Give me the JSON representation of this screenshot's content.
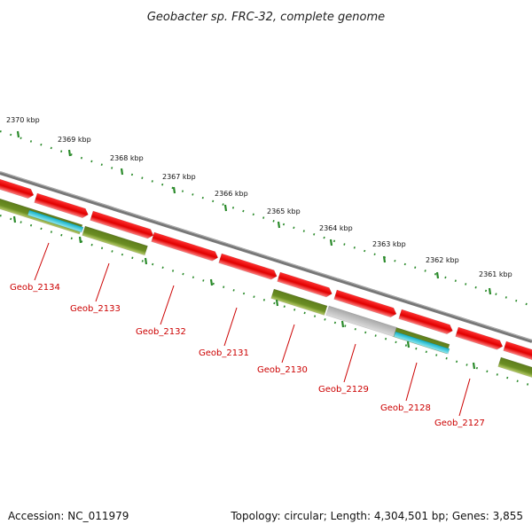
{
  "title": "Geobacter sp. FRC-32, complete genome",
  "colors": {
    "cds_red": "#f00000",
    "cds_red_light": "#ff7070",
    "gene_olive": "#6b8e23",
    "gene_olive_light": "#a9bf5a",
    "rna_cyan": "#20c8d8",
    "pseudo_gray": "#b8b8b8",
    "backbone": "#7a7a7a",
    "tick_green": "#2a8a2a",
    "label_red": "#cc0000"
  },
  "kbp_ticks": [
    {
      "label": "2370 kbp"
    },
    {
      "label": "2369 kbp"
    },
    {
      "label": "2368 kbp"
    },
    {
      "label": "2367 kbp"
    },
    {
      "label": "2366 kbp"
    },
    {
      "label": "2365 kbp"
    },
    {
      "label": "2364 kbp"
    },
    {
      "label": "2363 kbp"
    },
    {
      "label": "2362 kbp"
    },
    {
      "label": "2361 kbp"
    }
  ],
  "genes": [
    {
      "label": "Geob_2134"
    },
    {
      "label": "Geob_2133"
    },
    {
      "label": "Geob_2132"
    },
    {
      "label": "Geob_2131"
    },
    {
      "label": "Geob_2130"
    },
    {
      "label": "Geob_2129"
    },
    {
      "label": "Geob_2128"
    },
    {
      "label": "Geob_2127"
    }
  ],
  "footer": {
    "accession": "Accession: NC_011979",
    "summary": "Topology: circular; Length: 4,304,501 bp; Genes: 3,855"
  }
}
